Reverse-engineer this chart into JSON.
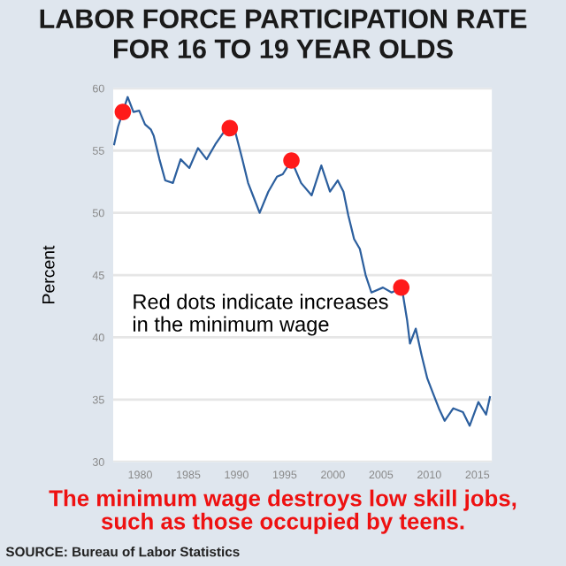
{
  "chart_data": {
    "type": "line",
    "title": "LABOR FORCE PARTICIPATION RATE\nFOR 16 TO 19 YEAR OLDS",
    "ylabel": "Percent",
    "annotations": [
      "Red dots indicate increases\nin the minimum wage",
      "The minimum wage destroys low skill jobs,\nsuch as those occupied by teens.",
      "SOURCE: Bureau of Labor Statistics"
    ],
    "series": [
      {
        "color": "#2c5f9e",
        "x": [
          1977.3,
          1977.7,
          1978.2,
          1978.7,
          1979.3,
          1979.9,
          1980.5,
          1981.1,
          1981.4,
          1982.0,
          1982.6,
          1983.4,
          1984.2,
          1985.1,
          1986.0,
          1986.9,
          1987.8,
          1988.6,
          1989.3,
          1989.9,
          1990.6,
          1991.2,
          1991.8,
          1992.4,
          1993.3,
          1994.2,
          1994.8,
          1995.7,
          1996.7,
          1997.8,
          1998.8,
          1999.7,
          2000.5,
          2001.1,
          2001.6,
          2002.2,
          2002.8,
          2003.4,
          2004.0,
          2005.2,
          2006.1,
          2007.1,
          2007.3,
          2007.7,
          2008.0,
          2008.6,
          2009.2,
          2009.8,
          2010.4,
          2011.0,
          2011.6,
          2012.5,
          2013.5,
          2014.2,
          2015.1,
          2015.9,
          2016.3
        ],
        "values": [
          55.5,
          56.9,
          58.1,
          59.3,
          58.1,
          58.2,
          57.1,
          56.7,
          56.2,
          54.3,
          52.6,
          52.4,
          54.3,
          53.6,
          55.2,
          54.3,
          55.5,
          56.4,
          56.8,
          56.4,
          54.3,
          52.4,
          51.2,
          50.0,
          51.7,
          52.9,
          53.1,
          54.2,
          52.4,
          51.4,
          53.8,
          51.7,
          52.6,
          51.7,
          49.8,
          47.9,
          47.1,
          45.0,
          43.6,
          44.0,
          43.6,
          44.0,
          43.3,
          41.4,
          39.5,
          40.7,
          38.6,
          36.7,
          35.5,
          34.3,
          33.3,
          34.3,
          34.0,
          32.9,
          34.8,
          33.8,
          35.2
        ]
      },
      {
        "type": "scatter",
        "color": "#ff1a1a",
        "marker": "circle",
        "x": [
          1978.2,
          1989.3,
          1995.7,
          2007.1
        ],
        "values": [
          58.1,
          56.8,
          54.2,
          44.0
        ]
      }
    ],
    "xlim": [
      1977.2,
      2016.5
    ],
    "xticks": [
      1980,
      1985,
      1990,
      1995,
      2000,
      2005,
      2010,
      2015
    ],
    "ylim": [
      30,
      60
    ],
    "yticks": [
      30,
      35,
      40,
      45,
      50,
      55,
      60
    ],
    "grid": "y"
  }
}
